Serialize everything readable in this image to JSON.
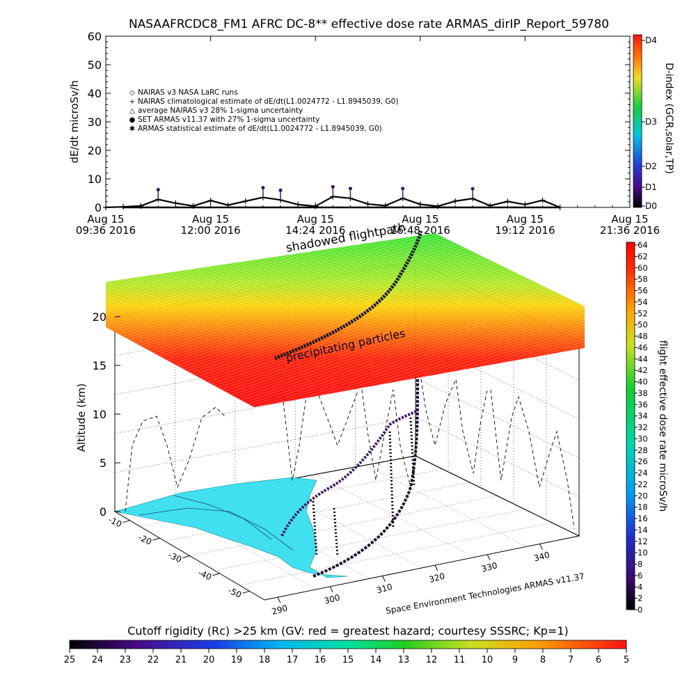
{
  "chart_data": [
    {
      "type": "line",
      "title": "NASAAFRCDC8_FM1 AFRC DC-8** effective dose rate ARMAS_dirIP_Report_59780",
      "ylabel": "dE/dt microSv/h",
      "ylim": [
        0,
        60
      ],
      "y_ticks": [
        "0",
        "10",
        "20",
        "30",
        "40",
        "50",
        "60"
      ],
      "x_ticks": [
        {
          "date": "Aug 15",
          "time": "09:36 2016"
        },
        {
          "date": "Aug 15",
          "time": "12:00 2016"
        },
        {
          "date": "Aug 15",
          "time": "14:24 2016"
        },
        {
          "date": "Aug 15",
          "time": "16:48 2016"
        },
        {
          "date": "Aug 15",
          "time": "19:12 2016"
        },
        {
          "date": "Aug 15",
          "time": "21:36 2016"
        }
      ],
      "legend_placement": "upper-left",
      "legend": [
        {
          "symbol": "◇",
          "label": "NAIRAS v3 NASA LaRC runs"
        },
        {
          "symbol": "+",
          "label": "NAIRAS climatological estimate of dE/dt(L1.0024772 - L1.8945039, G0)"
        },
        {
          "symbol": "△",
          "label": "average NAIRAS v3 28% 1-sigma uncertainty"
        },
        {
          "symbol": "●",
          "label": "SET ARMAS v11.37 with 27% 1-sigma uncertainty",
          "color": "#2a3bd0"
        },
        {
          "symbol": "✱",
          "label": "ARMAS statistical estimate of dE/dt(L1.0024772 - L1.8945039, G0)"
        }
      ],
      "series": [
        {
          "x": [
            9.6,
            10.0,
            10.4,
            10.8,
            11.2,
            11.6,
            12.0,
            12.4,
            12.8,
            13.2,
            13.6,
            14.0,
            14.4,
            14.8,
            15.2,
            15.6,
            16.0,
            16.4,
            16.8,
            17.2,
            17.6,
            18.0,
            18.4,
            18.8,
            19.2,
            19.6,
            20.0
          ],
          "values": [
            0,
            0.2,
            0.5,
            2.8,
            1.5,
            0.5,
            2.4,
            0.8,
            2.2,
            3.5,
            2.6,
            1.0,
            0.4,
            3.8,
            3.2,
            1.2,
            0.6,
            3.2,
            1.1,
            0.4,
            2.2,
            3.1,
            0.6,
            2.1,
            1.0,
            2.5,
            0.0
          ]
        }
      ],
      "colorbar": {
        "label": "D-index (GCR,solar,TP)",
        "ticks": [
          "D0",
          "D1",
          "D2",
          "D3",
          "D4"
        ]
      }
    },
    {
      "type": "scatter",
      "zlabel": "Altitude (km)",
      "z_ticks": [
        "0",
        "5",
        "10",
        "15",
        "20"
      ],
      "lon_ticks": [
        "290",
        "300",
        "310",
        "320",
        "330",
        "340"
      ],
      "lat_ticks": [
        "-10",
        "-20",
        "-30",
        "-40",
        "-50"
      ],
      "annotations": [
        "shadowed flightpath",
        "precipitating particles",
        "Space Environment Technologies ARMAS v11.37"
      ],
      "colorbar": {
        "label": "flight effective dose rate microSv/h",
        "ticks": [
          "0",
          "2",
          "4",
          "6",
          "8",
          "10",
          "12",
          "14",
          "16",
          "18",
          "20",
          "22",
          "24",
          "26",
          "28",
          "30",
          "32",
          "34",
          "36",
          "38",
          "40",
          "42",
          "44",
          "46",
          "48",
          "50",
          "52",
          "54",
          "56",
          "58",
          "60",
          "62",
          "64"
        ]
      }
    },
    {
      "type": "heatmap",
      "label": "Cutoff rigidity (Rc) >25 km (GV: red = greatest hazard; courtesy SSSRC; Kp=1)",
      "ticks": [
        "25",
        "24",
        "23",
        "22",
        "21",
        "20",
        "19",
        "18",
        "17",
        "16",
        "15",
        "14",
        "13",
        "12",
        "11",
        "10",
        "9",
        "8",
        "7",
        "6",
        "5"
      ]
    }
  ]
}
